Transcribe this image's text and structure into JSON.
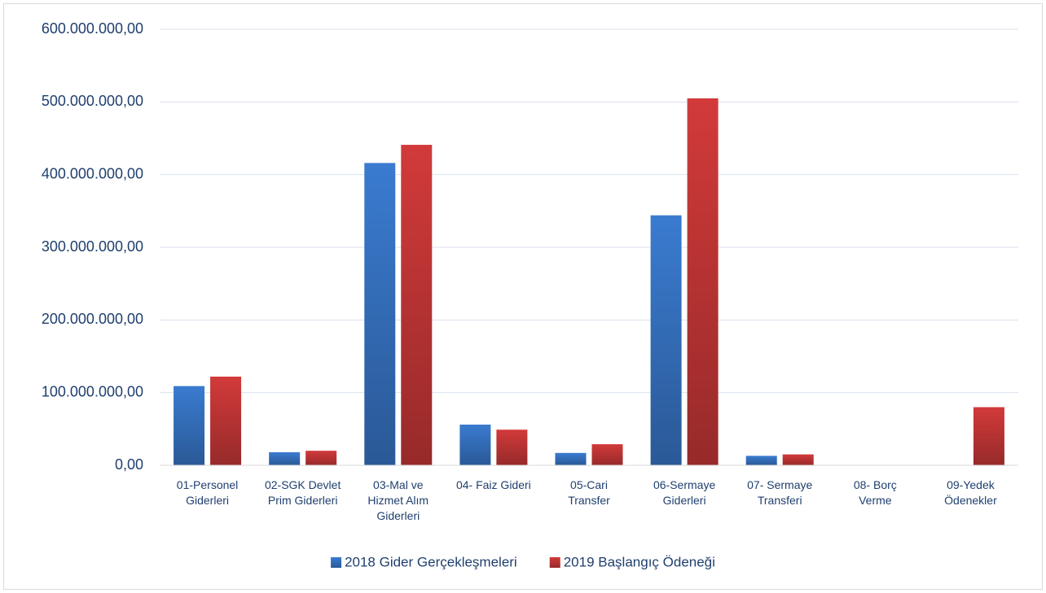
{
  "chart_data": {
    "type": "bar",
    "categories": [
      "01-Personel\nGiderleri",
      "02-SGK Devlet\nPrim Giderleri",
      "03-Mal ve\nHizmet Alım\nGiderleri",
      "04- Faiz Gideri",
      "05-Cari\nTransfer",
      "06-Sermaye\nGiderleri",
      "07- Sermaye\nTransferi",
      "08- Borç\nVerme",
      "09-Yedek\nÖdenekler"
    ],
    "series": [
      {
        "name": "2018 Gider Gerçekleşmeleri",
        "color": "#3a7bd0",
        "values": [
          109000000,
          18000000,
          416000000,
          56000000,
          17000000,
          344000000,
          13000000,
          0,
          0
        ]
      },
      {
        "name": "2019 Başlangıç Ödeneği",
        "color": "#d23a3a",
        "values": [
          122000000,
          20000000,
          441000000,
          49000000,
          29000000,
          505000000,
          15000000,
          500000,
          80000000
        ]
      }
    ],
    "ylim": [
      0,
      600000000
    ],
    "yticks": [
      {
        "value": 0,
        "label": "0,00"
      },
      {
        "value": 100000000,
        "label": "100.000.000,00"
      },
      {
        "value": 200000000,
        "label": "200.000.000,00"
      },
      {
        "value": 300000000,
        "label": "300.000.000,00"
      },
      {
        "value": 400000000,
        "label": "400.000.000,00"
      },
      {
        "value": 500000000,
        "label": "500.000.000,00"
      },
      {
        "value": 600000000,
        "label": "600.000.000,00"
      }
    ],
    "grid": true,
    "legend": "bottom"
  }
}
